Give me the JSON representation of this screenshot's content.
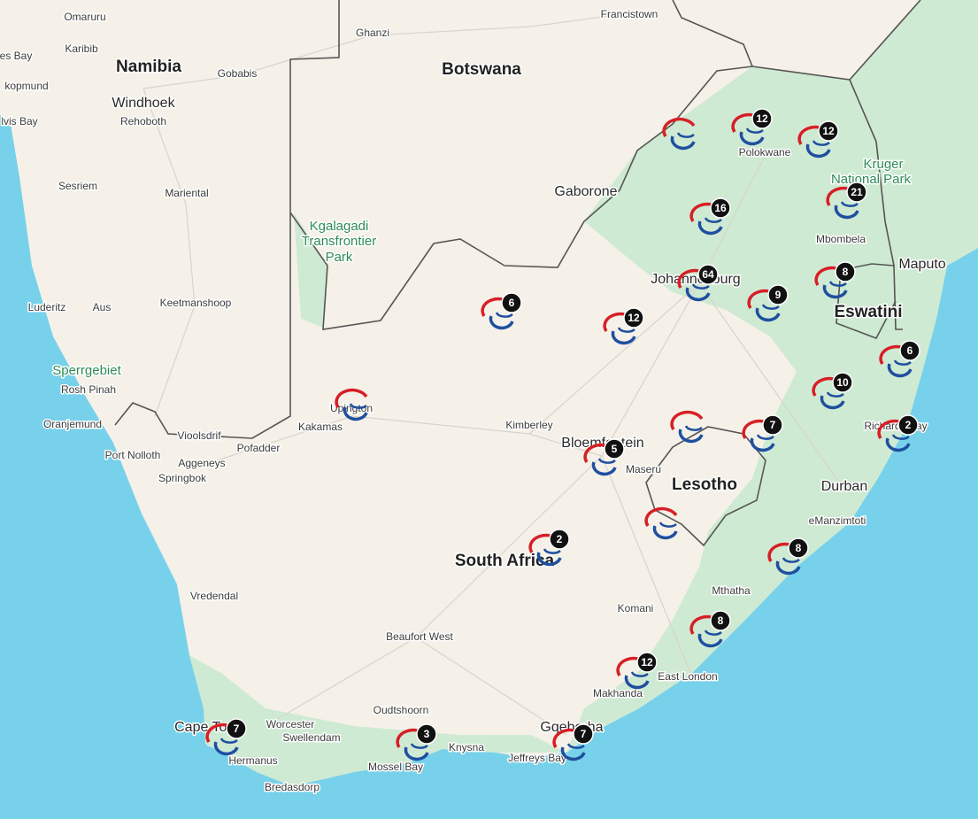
{
  "places": [
    "Namibia",
    "Botswana",
    "South Africa",
    "Lesotho",
    "Eswatini",
    "Omaruru",
    "Karibib",
    "es Bay",
    "kopmund",
    "lvis Bay",
    "Windhoek",
    "Rehoboth",
    "Gobabis",
    "Ghanzi",
    "Francistown",
    "Sesriem",
    "Mariental",
    "Keetmanshoop",
    "Luderitz",
    "Aus",
    "Sperrgebiet",
    "Rosh Pinah",
    "Oranjemund",
    "Vioolsdrif",
    "Port Nolloth",
    "Aggeneys",
    "Springbok",
    "Pofadder",
    "Kakamas",
    "Upington",
    "Kgalagadi",
    "Transfrontier",
    "Park",
    "Gaborone",
    "Polokwane",
    "Kruger",
    "National Park",
    "Mbombela",
    "Maputo",
    "Johannesburg",
    "Kimberley",
    "Bloemfontein",
    "Maseru",
    "Richards Bay",
    "Durban",
    "eManzimtoti",
    "Mthatha",
    "Komani",
    "Vredendal",
    "Beaufort West",
    "East London",
    "Makhanda",
    "Oudtshoorn",
    "Cape Town",
    "Worcester",
    "Swellendam",
    "Knysna",
    "Gqeberha",
    "Jeffreys Bay",
    "Mossel Bay",
    "Hermanus",
    "Bredasdorp"
  ],
  "cluster_counts": [
    12,
    12,
    16,
    21,
    64,
    9,
    8,
    6,
    12,
    6,
    10,
    2,
    7,
    5,
    2,
    8,
    8,
    12,
    7,
    3,
    7
  ]
}
